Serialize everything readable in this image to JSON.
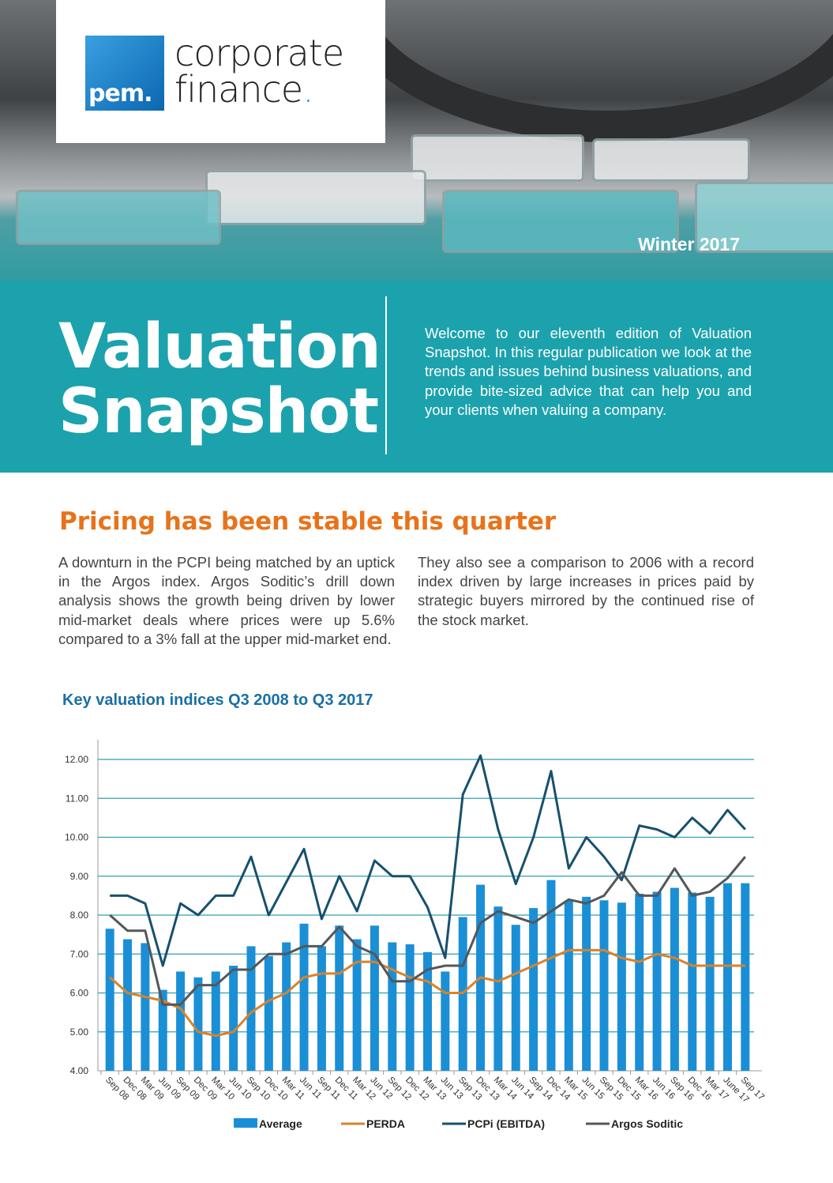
{
  "header": {
    "logo_mark": "pem.",
    "logo_word1": "corporate",
    "logo_word2": "finance",
    "season": "Winter 2017"
  },
  "banner": {
    "title_line1": "Valuation",
    "title_line2": "Snapshot",
    "intro": "Welcome to our eleventh edition of Valuation Snapshot. In this regular publication we look at the trends and issues behind business valuations, and provide bite-sized advice that can help you and your clients when valuing a company."
  },
  "article": {
    "heading": "Pricing has been stable this quarter",
    "col1": "A downturn in the PCPI being matched by an uptick in the Argos index.  Argos Soditic’s drill down analysis shows the growth being driven by lower mid-market deals where prices were up 5.6% compared to a 3% fall at the upper mid-market end.",
    "col2": "They also see a comparison to 2006 with a record index driven by large increases in prices paid by strategic buyers mirrored by the continued rise of the stock market."
  },
  "chart_data": {
    "type": "bar+line",
    "title": "Key valuation indices Q3 2008 to Q3 2017",
    "ylim": [
      4,
      12
    ],
    "yticks": [
      "4.00",
      "5.00",
      "6.00",
      "7.00",
      "8.00",
      "9.00",
      "10.00",
      "11.00",
      "12.00"
    ],
    "grid": true,
    "legend": "bottom",
    "categories": [
      "Sep 08",
      "Dec 08",
      "Mar 09",
      "Jun 09",
      "Sep 09",
      "Dec 09",
      "Mar 10",
      "Jun 10",
      "Sep 10",
      "Dec 10",
      "Mar 11",
      "Jun 11",
      "Sep 11",
      "Dec 11",
      "Mar 12",
      "Jun 12",
      "Sep 12",
      "Dec 12",
      "Mar 13",
      "Jun 13",
      "Sep 13",
      "Dec 13",
      "Mar 14",
      "Jun 14",
      "Sep 14",
      "Dec 14",
      "Mar 15",
      "Jun 15",
      "Sep 15",
      "Dec 15",
      "Mar 16",
      "Jun 16",
      "Sep 16",
      "Dec 16",
      "Mar 17",
      "June 17",
      "Sep 17"
    ],
    "series": [
      {
        "name": "Average",
        "type": "bar",
        "color": "#1a8fd6",
        "values": [
          7.65,
          7.38,
          7.28,
          6.08,
          6.55,
          6.4,
          6.55,
          6.7,
          7.2,
          6.95,
          7.3,
          7.78,
          7.2,
          7.73,
          7.38,
          7.73,
          7.3,
          7.25,
          7.05,
          6.55,
          7.95,
          8.78,
          8.22,
          7.75,
          8.18,
          8.9,
          8.37,
          8.47,
          8.38,
          8.32,
          8.55,
          8.6,
          8.7,
          8.58,
          8.47,
          8.82,
          8.82
        ]
      },
      {
        "name": "PERDA",
        "type": "line",
        "color": "#d9822b",
        "values": [
          6.4,
          6.0,
          5.9,
          5.8,
          5.6,
          5.0,
          4.9,
          5.0,
          5.5,
          5.8,
          6.0,
          6.4,
          6.5,
          6.5,
          6.8,
          6.8,
          6.6,
          6.4,
          6.3,
          6.0,
          6.0,
          6.4,
          6.3,
          6.5,
          6.7,
          6.9,
          7.1,
          7.1,
          7.1,
          6.9,
          6.8,
          7.0,
          6.9,
          6.7,
          6.7,
          6.7,
          6.7
        ]
      },
      {
        "name": "PCPi (EBITDA)",
        "type": "line",
        "color": "#17506e",
        "values": [
          8.5,
          8.5,
          8.3,
          6.7,
          8.3,
          8.0,
          8.5,
          8.5,
          9.5,
          8.0,
          8.85,
          9.7,
          7.9,
          9.0,
          8.1,
          9.4,
          9.0,
          9.0,
          8.2,
          6.9,
          11.1,
          12.1,
          10.2,
          8.8,
          10.0,
          11.7,
          9.2,
          10.0,
          9.5,
          8.9,
          10.3,
          10.2,
          10.0,
          10.5,
          10.1,
          10.7,
          10.2
        ]
      },
      {
        "name": "Argos Soditic",
        "type": "line",
        "color": "#54575a",
        "values": [
          8.0,
          7.6,
          7.6,
          5.7,
          5.7,
          6.2,
          6.2,
          6.6,
          6.6,
          7.0,
          7.0,
          7.2,
          7.2,
          7.7,
          7.2,
          7.0,
          6.3,
          6.3,
          6.6,
          6.7,
          6.7,
          7.8,
          8.1,
          7.95,
          7.8,
          8.1,
          8.4,
          8.3,
          8.5,
          9.1,
          8.5,
          8.5,
          9.2,
          8.5,
          8.6,
          8.95,
          9.5
        ]
      }
    ]
  }
}
